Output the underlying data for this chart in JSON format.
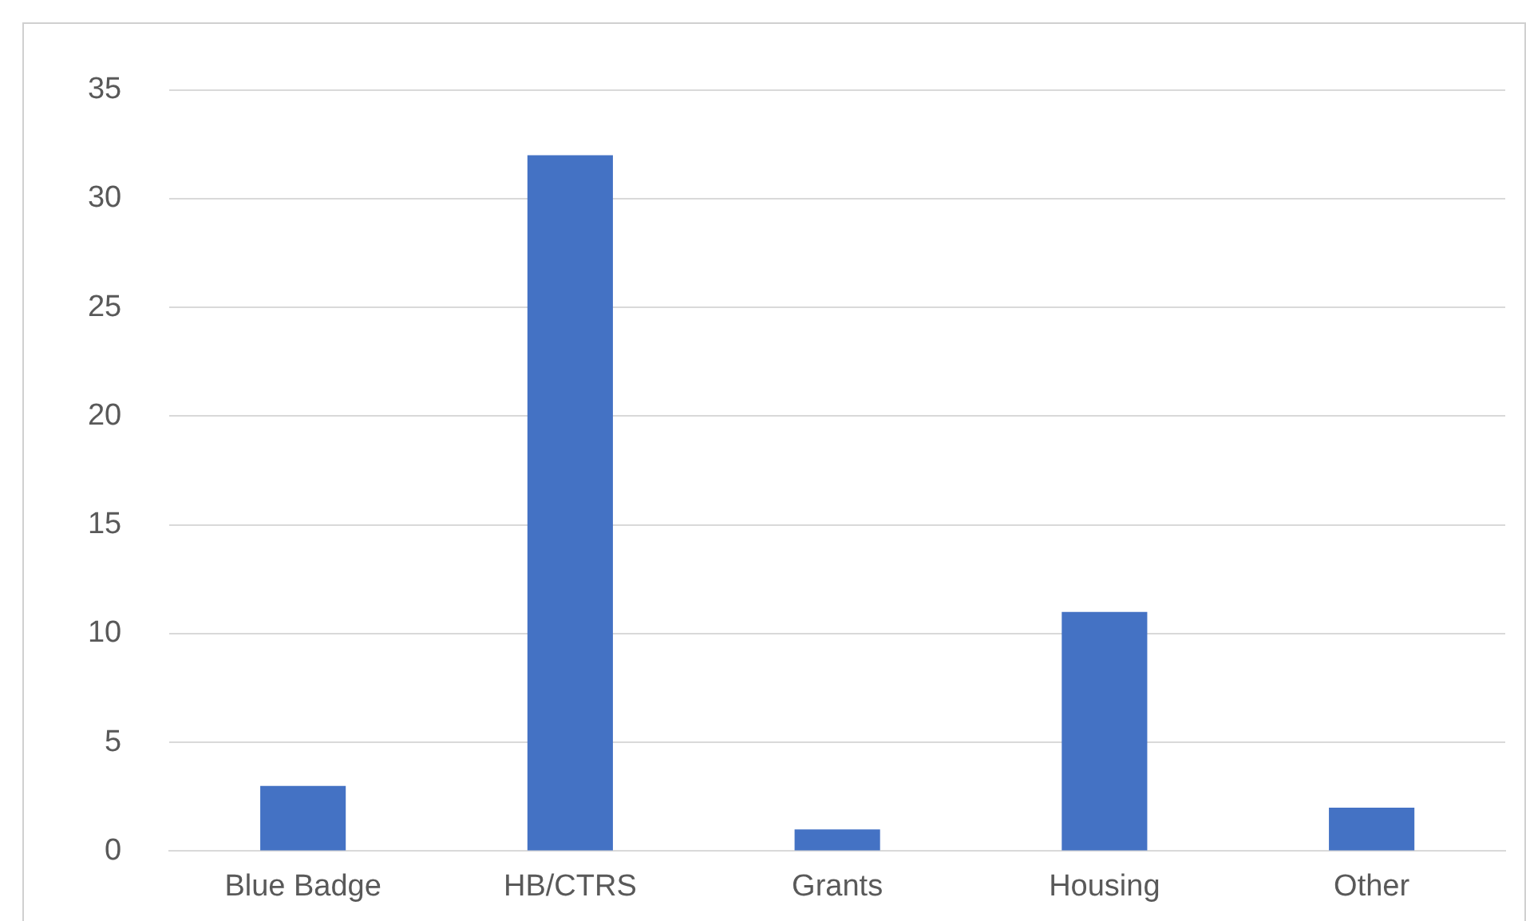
{
  "chart_data": {
    "type": "bar",
    "categories": [
      "Blue Badge",
      "HB/CTRS",
      "Grants",
      "Housing",
      "Other"
    ],
    "values": [
      3,
      32,
      1,
      11,
      2
    ],
    "color": "#4472c4",
    "ylim": [
      0,
      35
    ],
    "yticks": [
      0,
      5,
      10,
      15,
      20,
      25,
      30,
      35
    ],
    "grid": "y",
    "legend": false
  }
}
